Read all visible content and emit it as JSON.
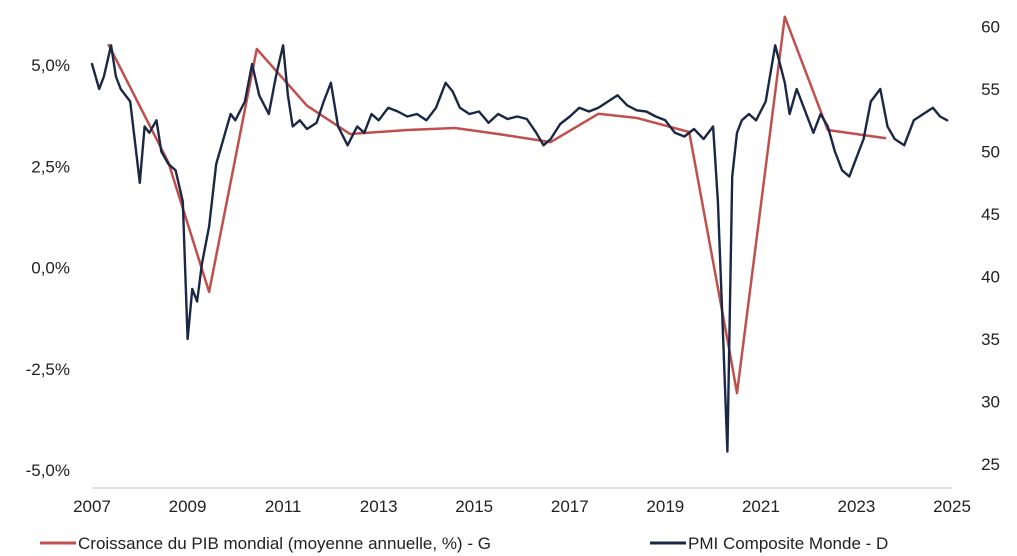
{
  "chart_data": {
    "type": "line",
    "title": "",
    "xlabel": "",
    "ylabel": "",
    "x_ticks": [
      "2007",
      "2009",
      "2011",
      "2013",
      "2015",
      "2017",
      "2019",
      "2021",
      "2023",
      "2025"
    ],
    "xlim": [
      2007,
      2025
    ],
    "y_left": {
      "ylim": [
        -5.0,
        5.5
      ],
      "ticks": [
        -5.0,
        -2.5,
        0.0,
        2.5,
        5.0
      ],
      "tick_labels": [
        "-5,0%",
        "-2,5%",
        "0,0%",
        "2,5%",
        "5,0%"
      ]
    },
    "y_right": {
      "ylim": [
        25,
        61
      ],
      "ticks": [
        25,
        30,
        35,
        40,
        45,
        50,
        55,
        60
      ],
      "tick_labels": [
        "25",
        "30",
        "35",
        "40",
        "45",
        "50",
        "55",
        "60"
      ]
    },
    "grid": false,
    "legend_position": "bottom",
    "series": [
      {
        "name": "Croissance du PIB mondial (moyenne annuelle, %) - G",
        "axis": "left",
        "color": "#c0504d",
        "x": [
          2007.35,
          2008.6,
          2009.45,
          2010.45,
          2011.5,
          2012.4,
          2013.6,
          2014.6,
          2015.5,
          2016.6,
          2017.6,
          2018.4,
          2019.5,
          2020.35,
          2020.5,
          2021.5,
          2022.4,
          2023.6
        ],
        "y": [
          5.5,
          2.6,
          -0.6,
          5.4,
          4.0,
          3.3,
          3.4,
          3.45,
          3.3,
          3.1,
          3.8,
          3.7,
          3.35,
          -2.1,
          -3.1,
          6.2,
          3.4,
          3.2
        ]
      },
      {
        "name": "PMI Composite Monde - D",
        "axis": "right",
        "color": "#1b2845",
        "x": [
          2007.0,
          2007.15,
          2007.25,
          2007.4,
          2007.5,
          2007.6,
          2007.8,
          2008.0,
          2008.1,
          2008.2,
          2008.35,
          2008.45,
          2008.6,
          2008.75,
          2008.9,
          2009.0,
          2009.1,
          2009.2,
          2009.3,
          2009.45,
          2009.6,
          2009.75,
          2009.9,
          2010.0,
          2010.2,
          2010.35,
          2010.5,
          2010.7,
          2010.85,
          2011.0,
          2011.1,
          2011.2,
          2011.35,
          2011.5,
          2011.7,
          2011.85,
          2012.0,
          2012.15,
          2012.35,
          2012.55,
          2012.7,
          2012.85,
          2013.0,
          2013.2,
          2013.4,
          2013.6,
          2013.8,
          2014.0,
          2014.2,
          2014.4,
          2014.55,
          2014.7,
          2014.9,
          2015.1,
          2015.3,
          2015.5,
          2015.7,
          2015.9,
          2016.1,
          2016.3,
          2016.45,
          2016.6,
          2016.8,
          2017.0,
          2017.2,
          2017.4,
          2017.6,
          2017.8,
          2018.0,
          2018.2,
          2018.4,
          2018.6,
          2018.8,
          2019.0,
          2019.2,
          2019.4,
          2019.6,
          2019.8,
          2020.0,
          2020.1,
          2020.2,
          2020.3,
          2020.4,
          2020.5,
          2020.6,
          2020.75,
          2020.9,
          2021.1,
          2021.3,
          2021.5,
          2021.6,
          2021.75,
          2021.9,
          2022.1,
          2022.25,
          2022.4,
          2022.55,
          2022.7,
          2022.85,
          2023.0,
          2023.15,
          2023.3,
          2023.5,
          2023.65,
          2023.8,
          2024.0,
          2024.2,
          2024.4,
          2024.6,
          2024.75,
          2024.9
        ],
        "y": [
          57,
          55,
          56,
          58.5,
          56,
          55,
          54,
          47.5,
          52,
          51.5,
          52.5,
          50,
          49,
          48.5,
          46,
          35,
          39,
          38,
          41,
          44,
          49,
          51,
          53,
          52.5,
          54,
          57,
          54.5,
          53,
          56,
          58.5,
          54.5,
          52,
          52.5,
          51.8,
          52.3,
          54,
          55.5,
          52,
          50.5,
          52,
          51.5,
          53,
          52.5,
          53.5,
          53.2,
          52.8,
          53,
          52.5,
          53.5,
          55.5,
          54.8,
          53.5,
          53,
          53.2,
          52.3,
          53,
          52.6,
          52.8,
          52.6,
          51.5,
          50.5,
          51,
          52.2,
          52.8,
          53.5,
          53.2,
          53.5,
          54,
          54.5,
          53.7,
          53.3,
          53.2,
          52.8,
          52.5,
          51.5,
          51.2,
          51.8,
          51,
          52,
          46,
          36,
          26,
          48,
          51.5,
          52.5,
          53,
          52.5,
          54,
          58.5,
          55.5,
          53,
          55,
          53.5,
          51.5,
          53,
          52,
          50,
          48.5,
          48,
          49.5,
          51,
          54,
          55,
          52,
          51,
          50.5,
          52.5,
          53,
          53.5,
          52.8,
          52.5
        ]
      }
    ]
  }
}
